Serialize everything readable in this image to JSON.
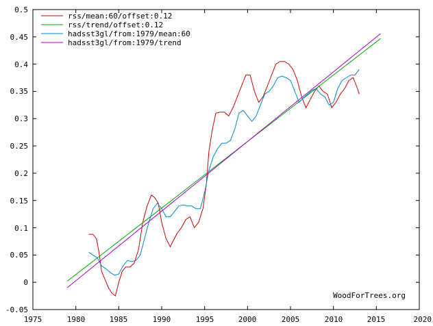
{
  "chart_data": {
    "type": "line",
    "title": "",
    "xlabel": "",
    "ylabel": "",
    "xlim": [
      1975,
      2020
    ],
    "ylim": [
      -0.05,
      0.5
    ],
    "grid": false,
    "legend_placement": "top-left",
    "x_ticks": [
      "1975",
      "1980",
      "1985",
      "1990",
      "1995",
      "2000",
      "2005",
      "2010",
      "2015",
      "2020"
    ],
    "y_ticks": [
      "0.5",
      "0.45",
      "0.4",
      "0.35",
      "0.3",
      "0.25",
      "0.2",
      "0.15",
      "0.1",
      "0.05",
      "0",
      "-0.05"
    ],
    "credit": "WoodForTrees.org",
    "series": [
      {
        "name": "rss/mean:60/offset:0.12",
        "color": "#cc0000",
        "x": [
          1981.5,
          1982.0,
          1982.4,
          1982.7,
          1983.0,
          1983.4,
          1983.8,
          1984.2,
          1984.6,
          1985.0,
          1985.4,
          1985.8,
          1986.3,
          1986.8,
          1987.3,
          1987.8,
          1988.3,
          1988.8,
          1989.2,
          1989.6,
          1990.0,
          1990.5,
          1991.0,
          1991.3,
          1991.8,
          1992.3,
          1992.8,
          1993.3,
          1993.8,
          1994.3,
          1994.8,
          1995.2,
          1995.5,
          1995.9,
          1996.3,
          1996.8,
          1997.3,
          1997.8,
          1998.3,
          1998.8,
          1999.3,
          1999.8,
          2000.3,
          2000.8,
          2001.3,
          2001.8,
          2002.3,
          2002.8,
          2003.3,
          2003.8,
          2004.3,
          2004.8,
          2005.3,
          2005.8,
          2006.3,
          2006.8,
          2007.3,
          2007.8,
          2008.3,
          2008.8,
          2009.3,
          2009.8,
          2010.3,
          2010.8,
          2011.3,
          2011.8,
          2012.3,
          2012.8,
          2013.0
        ],
        "values": [
          0.088,
          0.088,
          0.08,
          0.055,
          0.02,
          0.005,
          -0.01,
          -0.02,
          -0.025,
          0.0,
          0.02,
          0.028,
          0.028,
          0.035,
          0.06,
          0.11,
          0.14,
          0.16,
          0.155,
          0.145,
          0.11,
          0.08,
          0.065,
          0.075,
          0.09,
          0.1,
          0.115,
          0.12,
          0.1,
          0.11,
          0.135,
          0.18,
          0.24,
          0.28,
          0.31,
          0.312,
          0.312,
          0.305,
          0.32,
          0.34,
          0.36,
          0.38,
          0.38,
          0.35,
          0.33,
          0.34,
          0.36,
          0.38,
          0.4,
          0.405,
          0.405,
          0.4,
          0.39,
          0.37,
          0.34,
          0.32,
          0.335,
          0.35,
          0.36,
          0.35,
          0.345,
          0.32,
          0.33,
          0.345,
          0.355,
          0.37,
          0.375,
          0.355,
          0.345
        ]
      },
      {
        "name": "rss/trend/offset:0.12",
        "color": "#00aa00",
        "x": [
          1979.0,
          2015.5
        ],
        "values": [
          0.002,
          0.447
        ]
      },
      {
        "name": "hadsst3gl/from:1979/mean:60",
        "color": "#0088cc",
        "x": [
          1981.5,
          1982.0,
          1982.5,
          1983.0,
          1983.5,
          1984.0,
          1984.5,
          1985.0,
          1985.5,
          1986.0,
          1986.5,
          1987.0,
          1987.5,
          1988.0,
          1988.5,
          1989.0,
          1989.5,
          1990.0,
          1990.5,
          1991.0,
          1991.5,
          1992.0,
          1992.5,
          1993.0,
          1993.5,
          1994.0,
          1994.5,
          1995.0,
          1995.5,
          1996.0,
          1996.5,
          1997.0,
          1997.5,
          1998.0,
          1998.5,
          1999.0,
          1999.5,
          2000.0,
          2000.5,
          2001.0,
          2001.5,
          2002.0,
          2002.5,
          2003.0,
          2003.5,
          2004.0,
          2004.5,
          2005.0,
          2005.5,
          2006.0,
          2006.5,
          2007.0,
          2007.5,
          2008.0,
          2008.5,
          2009.0,
          2009.5,
          2010.0,
          2010.5,
          2011.0,
          2011.5,
          2012.0,
          2012.5,
          2013.0
        ],
        "values": [
          0.055,
          0.05,
          0.045,
          0.03,
          0.025,
          0.018,
          0.013,
          0.015,
          0.03,
          0.04,
          0.038,
          0.04,
          0.05,
          0.08,
          0.11,
          0.135,
          0.145,
          0.135,
          0.12,
          0.12,
          0.13,
          0.14,
          0.142,
          0.14,
          0.14,
          0.135,
          0.135,
          0.165,
          0.205,
          0.23,
          0.245,
          0.255,
          0.255,
          0.26,
          0.28,
          0.31,
          0.315,
          0.305,
          0.295,
          0.305,
          0.325,
          0.345,
          0.35,
          0.36,
          0.375,
          0.378,
          0.375,
          0.37,
          0.35,
          0.33,
          0.338,
          0.345,
          0.352,
          0.355,
          0.345,
          0.34,
          0.325,
          0.33,
          0.355,
          0.37,
          0.375,
          0.38,
          0.38,
          0.39
        ]
      },
      {
        "name": "hadsst3gl/from:1979/trend",
        "color": "#aa00cc",
        "x": [
          1979.0,
          2015.5
        ],
        "values": [
          -0.01,
          0.456
        ]
      }
    ]
  }
}
